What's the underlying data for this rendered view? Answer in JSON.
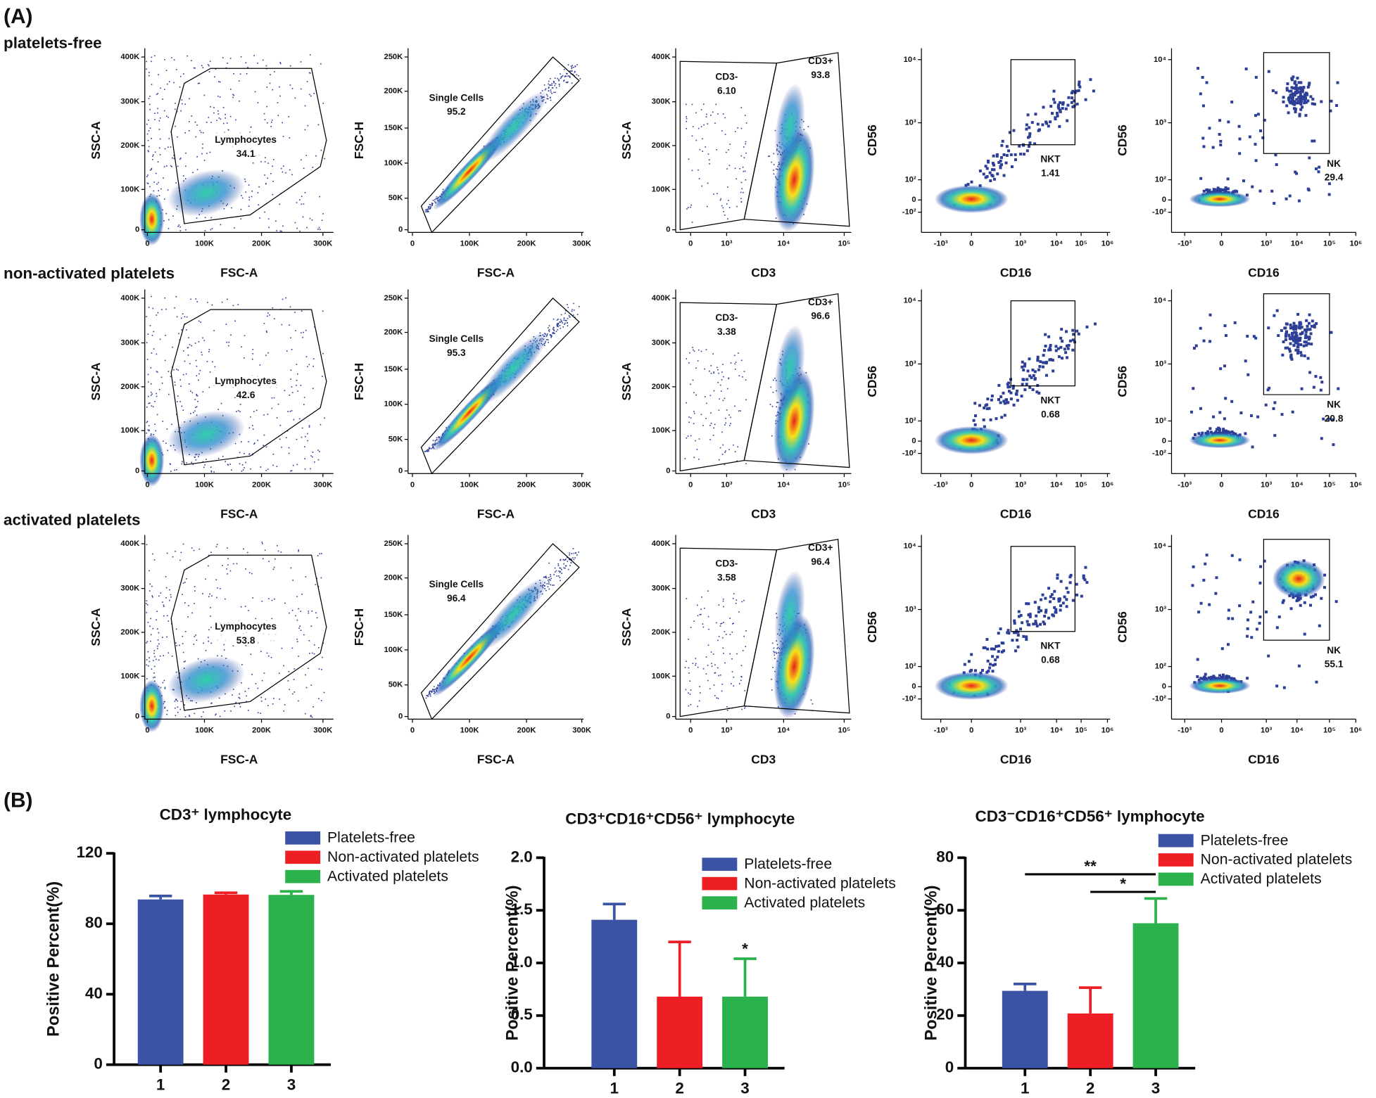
{
  "panel_a": {
    "label": "(A)",
    "columns": [
      {
        "x_label": "FSC-A",
        "y_label": "SSC-A",
        "x_ticks": [
          "0",
          "100K",
          "200K",
          "300K"
        ],
        "y_ticks": [
          "0",
          "100K",
          "200K",
          "300K",
          "400K"
        ]
      },
      {
        "x_label": "FSC-A",
        "y_label": "FSC-H",
        "x_ticks": [
          "0",
          "100K",
          "200K",
          "300K"
        ],
        "y_ticks": [
          "0",
          "50K",
          "100K",
          "150K",
          "200K",
          "250K"
        ]
      },
      {
        "x_label": "CD3",
        "y_label": "SSC-A",
        "x_ticks": [
          "0",
          "10³",
          "10⁴",
          "10⁵"
        ],
        "y_ticks": [
          "0",
          "100K",
          "200K",
          "300K",
          "400K"
        ]
      },
      {
        "x_label": "CD16",
        "y_label": "CD56",
        "x_ticks": [
          "-10³",
          "0",
          "10³",
          "10⁴",
          "10⁵",
          "10⁶"
        ],
        "y_ticks": [
          "-10²",
          "0",
          "10²",
          "10³",
          "10⁴"
        ]
      },
      {
        "x_label": "CD16",
        "y_label": "CD56",
        "x_ticks": [
          "-10³",
          "0",
          "10³",
          "10⁴",
          "10⁵",
          "10⁶"
        ],
        "y_ticks": [
          "-10²",
          "0",
          "10²",
          "10³",
          "10⁴"
        ]
      }
    ],
    "rows": [
      {
        "title": "platelets-free",
        "gates": [
          [
            {
              "name": "Lymphocytes",
              "value": "34.1"
            }
          ],
          [
            {
              "name": "Single Cells",
              "value": "95.2"
            }
          ],
          [
            {
              "name": "CD3-",
              "value": "6.10"
            },
            {
              "name": "CD3+",
              "value": "93.8"
            }
          ],
          [
            {
              "name": "NKT",
              "value": "1.41"
            }
          ],
          [
            {
              "name": "NK",
              "value": "29.4"
            }
          ]
        ]
      },
      {
        "title": "non-activated platelets",
        "gates": [
          [
            {
              "name": "Lymphocytes",
              "value": "42.6"
            }
          ],
          [
            {
              "name": "Single Cells",
              "value": "95.3"
            }
          ],
          [
            {
              "name": "CD3-",
              "value": "3.38"
            },
            {
              "name": "CD3+",
              "value": "96.6"
            }
          ],
          [
            {
              "name": "NKT",
              "value": "0.68"
            }
          ],
          [
            {
              "name": "NK",
              "value": "20.8"
            }
          ]
        ]
      },
      {
        "title": "activated platelets",
        "gates": [
          [
            {
              "name": "Lymphocytes",
              "value": "53.8"
            }
          ],
          [
            {
              "name": "Single Cells",
              "value": "96.4"
            }
          ],
          [
            {
              "name": "CD3-",
              "value": "3.58"
            },
            {
              "name": "CD3+",
              "value": "96.4"
            }
          ],
          [
            {
              "name": "NKT",
              "value": "0.68"
            }
          ],
          [
            {
              "name": "NK",
              "value": "55.1"
            }
          ]
        ]
      }
    ]
  },
  "panel_b_label": "(B)",
  "chart_data": [
    {
      "type": "bar",
      "title": "CD3⁺ lymphocyte",
      "y_label": "Positive Percent(%)",
      "categories": [
        "1",
        "2",
        "3"
      ],
      "values": [
        93.8,
        96.6,
        96.4
      ],
      "errors": [
        2,
        1,
        2
      ],
      "colors": [
        "#3a53a4",
        "#ed1f24",
        "#2bb24c"
      ],
      "legend": [
        "Platelets-free",
        "Non-activated platelets",
        "Activated platelets"
      ],
      "ylim": [
        0,
        120
      ],
      "yticks": [
        0,
        40,
        80,
        120
      ],
      "annotations": []
    },
    {
      "type": "bar",
      "title": "CD3⁺CD16⁺CD56⁺ lymphocyte",
      "y_label": "Positive Percent(%)",
      "categories": [
        "1",
        "2",
        "3"
      ],
      "values": [
        1.41,
        0.68,
        0.68
      ],
      "errors": [
        0.15,
        0.52,
        0.36
      ],
      "colors": [
        "#3a53a4",
        "#ed1f24",
        "#2bb24c"
      ],
      "legend": [
        "Platelets-free",
        "Non-activated platelets",
        "Activated platelets"
      ],
      "ylim": [
        0,
        2
      ],
      "yticks": [
        {
          "value": 0,
          "label": "0.0"
        },
        {
          "value": 0.5,
          "label": "0.5"
        },
        {
          "value": 1,
          "label": "1.0"
        },
        {
          "value": 1.5,
          "label": "1.5"
        },
        {
          "value": 2,
          "label": "2.0"
        }
      ],
      "annotations": [
        {
          "text": "*",
          "category": 2
        }
      ]
    },
    {
      "type": "bar",
      "title": "CD3⁻CD16⁺CD56⁺ lymphocyte",
      "y_label": "Positive Percent(%)",
      "categories": [
        "1",
        "2",
        "3"
      ],
      "values": [
        29.4,
        20.8,
        55.1
      ],
      "errors": [
        2.6,
        9.8,
        9.4
      ],
      "colors": [
        "#3a53a4",
        "#ed1f24",
        "#2bb24c"
      ],
      "legend": [
        "Platelets-free",
        "Non-activated platelets",
        "Activated platelets"
      ],
      "ylim": [
        0,
        80
      ],
      "yticks": [
        0,
        20,
        40,
        60,
        80
      ],
      "annotations": [
        {
          "text": "**",
          "from": 0,
          "to": 2,
          "y": 73.7
        },
        {
          "text": "*",
          "from": 1,
          "to": 2,
          "y": 67
        }
      ]
    }
  ]
}
